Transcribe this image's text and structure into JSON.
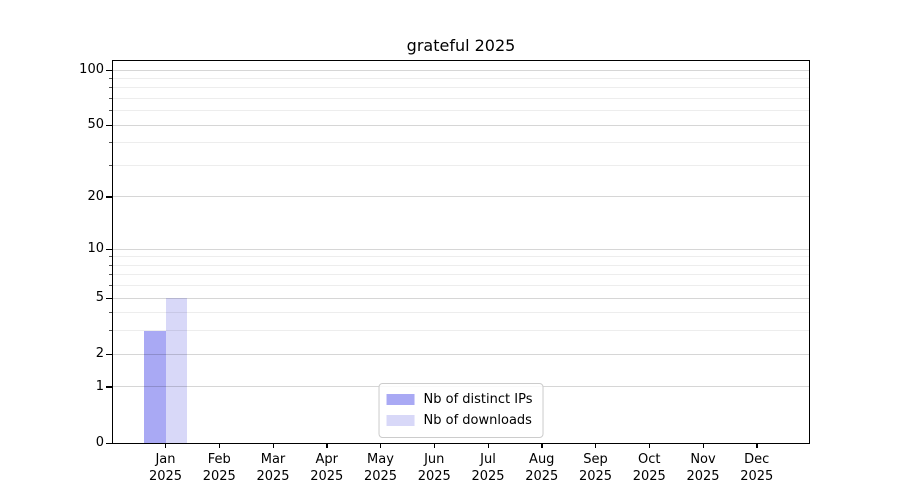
{
  "chart_data": {
    "type": "bar",
    "title": "grateful 2025",
    "categories": [
      "Jan 2025",
      "Feb 2025",
      "Mar 2025",
      "Apr 2025",
      "May 2025",
      "Jun 2025",
      "Jul 2025",
      "Aug 2025",
      "Sep 2025",
      "Oct 2025",
      "Nov 2025",
      "Dec 2025"
    ],
    "series": [
      {
        "name": "Nb of distinct IPs",
        "color": "#a9a9f4",
        "values": [
          3,
          0,
          0,
          0,
          0,
          0,
          0,
          0,
          0,
          0,
          0,
          0
        ]
      },
      {
        "name": "Nb of downloads",
        "color": "#d8d8f8",
        "values": [
          5,
          0,
          0,
          0,
          0,
          0,
          0,
          0,
          0,
          0,
          0,
          0
        ]
      }
    ],
    "xlabel": "",
    "ylabel": "",
    "yscale": "log1p",
    "ylim": [
      0,
      111
    ],
    "yticks_major": [
      0,
      1,
      2,
      5,
      10,
      20,
      50,
      100
    ],
    "yticks_minor": [
      3,
      4,
      6,
      7,
      8,
      9,
      30,
      40,
      60,
      70,
      80,
      90
    ],
    "grid": "both",
    "legend_position": "lower center",
    "colors": {
      "background": "#ffffff",
      "spine": "#000000",
      "grid_major": "rgba(0,0,0,0.16)",
      "grid_minor": "rgba(0,0,0,0.07)",
      "legend_border": "#cccccc"
    }
  }
}
